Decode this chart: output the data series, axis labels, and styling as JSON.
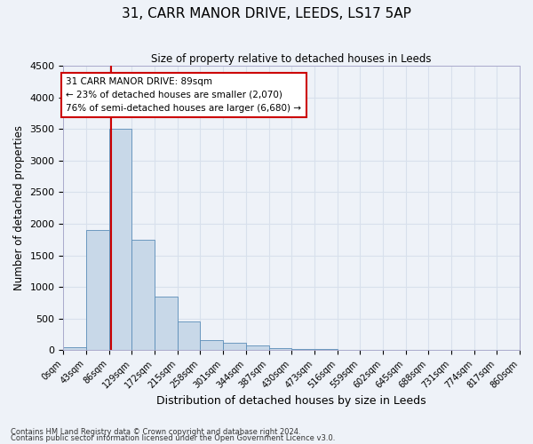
{
  "title": "31, CARR MANOR DRIVE, LEEDS, LS17 5AP",
  "subtitle": "Size of property relative to detached houses in Leeds",
  "xlabel": "Distribution of detached houses by size in Leeds",
  "ylabel": "Number of detached properties",
  "bin_edges": [
    0,
    43,
    86,
    129,
    172,
    215,
    258,
    301,
    344,
    387,
    430,
    473,
    516,
    559,
    602,
    645,
    688,
    731,
    774,
    817,
    860
  ],
  "bar_heights": [
    50,
    1900,
    3500,
    1750,
    850,
    450,
    160,
    110,
    80,
    30,
    25,
    15,
    10,
    5,
    3,
    2,
    1,
    1,
    1,
    0
  ],
  "bar_color": "#c8d8e8",
  "bar_edge_color": "#5b8db8",
  "property_size": 89,
  "vline_color": "#cc0000",
  "annotation_text": "31 CARR MANOR DRIVE: 89sqm\n← 23% of detached houses are smaller (2,070)\n76% of semi-detached houses are larger (6,680) →",
  "annotation_box_facecolor": "#ffffff",
  "annotation_box_edgecolor": "#cc0000",
  "ylim": [
    0,
    4500
  ],
  "yticks": [
    0,
    500,
    1000,
    1500,
    2000,
    2500,
    3000,
    3500,
    4000,
    4500
  ],
  "grid_color": "#d8e0ec",
  "footer1": "Contains HM Land Registry data © Crown copyright and database right 2024.",
  "footer2": "Contains public sector information licensed under the Open Government Licence v3.0.",
  "bg_color": "#eef2f8"
}
